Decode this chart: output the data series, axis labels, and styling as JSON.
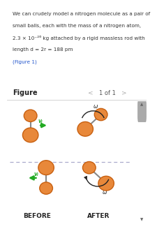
{
  "figure_bg": "#ffffff",
  "text_bg": "#ddeef8",
  "diagram_bg": "#f5f5f0",
  "ball_color": "#e8883a",
  "ball_edge_color": "#c86010",
  "rod_color": "#888888",
  "arrow_color": "#22aa22",
  "curve_arrow_color": "#222222",
  "dashed_color": "#aaaacc",
  "scroll_bg": "#d0d0d0",
  "label_before": "BEFORE",
  "label_after": "AFTER",
  "label_figure": "Figure",
  "label_page": "1 of 1",
  "label_vi": "vᵢ",
  "label_omega": "ω",
  "text_lines": [
    "We can crudely model a nitrogen molecule as a pair of",
    "small balls, each with the mass of a nitrogen atom,",
    "2.3 × 10⁻²⁶ kg attached by a rigid massless rod with",
    "length d = 2r = 188 pm",
    "(Figure 1)"
  ]
}
